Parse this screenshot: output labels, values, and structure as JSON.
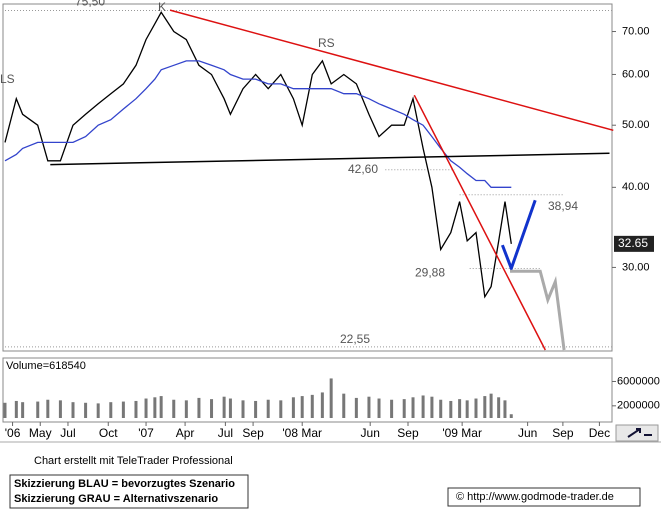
{
  "chart_data": [
    {
      "type": "line",
      "log_y": true,
      "x": [
        -0.4,
        0.5,
        1,
        2.2,
        3,
        4,
        5,
        6,
        7,
        8,
        9,
        10,
        10.8,
        11.5,
        12,
        13,
        14,
        15,
        16,
        17,
        17.5,
        18.5,
        19.5,
        20.5,
        21.5,
        22.5,
        23.2,
        24,
        24.8,
        25.5,
        26.5,
        27.5,
        28.5,
        29.3,
        30.3,
        31.3,
        32,
        32.8,
        33.5,
        34.2,
        35,
        35.7,
        36.3,
        37,
        37.7,
        38.2,
        38.8,
        39.3,
        39.8
      ],
      "series": [
        {
          "color": "#000000",
          "values": [
            47,
            55,
            52,
            50,
            44,
            44,
            50,
            52,
            54,
            56,
            58,
            62,
            68,
            72,
            75,
            70,
            68,
            62,
            60,
            55,
            52,
            57,
            60,
            57,
            60,
            55,
            50,
            60,
            63,
            58,
            60,
            58,
            52,
            48,
            50,
            50,
            55,
            46,
            40,
            32,
            34,
            38,
            33,
            34,
            27,
            28,
            33,
            38,
            32.65
          ]
        },
        {
          "color": "#3344cc",
          "values": [
            44,
            45,
            46,
            47,
            47,
            47,
            47,
            48,
            50,
            51,
            53,
            55,
            57,
            59,
            61,
            62,
            63,
            63,
            62,
            61,
            60,
            59,
            59,
            58,
            58,
            57,
            57,
            57,
            57,
            57,
            56,
            56,
            55,
            54,
            53,
            52,
            51,
            50,
            48,
            46,
            44,
            43,
            42,
            41,
            41,
            40,
            40,
            40,
            40
          ]
        }
      ],
      "ylim": [
        22.3,
        77
      ],
      "yticks": [
        {
          "value": 70,
          "label": "70.00"
        },
        {
          "value": 60,
          "label": "60.00"
        },
        {
          "value": 50,
          "label": "50.00"
        },
        {
          "value": 40,
          "label": "40.00"
        },
        {
          "value": 30,
          "label": "30.00"
        }
      ],
      "xlim": [
        -0.4,
        47.8
      ],
      "xticks": [
        {
          "value": 0.2,
          "label": "'06"
        },
        {
          "value": 2.4,
          "label": "May"
        },
        {
          "value": 4.6,
          "label": "Jul"
        },
        {
          "value": 7.8,
          "label": "Oct"
        },
        {
          "value": 10.8,
          "label": "'07"
        },
        {
          "value": 13.9,
          "label": "Apr"
        },
        {
          "value": 17.1,
          "label": "Jul"
        },
        {
          "value": 19.3,
          "label": "Sep"
        },
        {
          "value": 23.2,
          "label": "'08 Mar"
        },
        {
          "value": 28.6,
          "label": "Jun"
        },
        {
          "value": 31.6,
          "label": "Sep"
        },
        {
          "value": 35.9,
          "label": "'09 Mar"
        },
        {
          "value": 41.1,
          "label": "Jun"
        },
        {
          "value": 43.9,
          "label": "Sep"
        },
        {
          "value": 46.8,
          "label": "Dec"
        }
      ],
      "levels": [
        {
          "value": 75.5,
          "label": "75,50",
          "x": [
            -0.4,
            47.8
          ]
        },
        {
          "value": 42.6,
          "label": "42,60",
          "x": [
            29.8,
            35.3
          ]
        },
        {
          "value": 38.94,
          "label": "38,94",
          "x": [
            35.7,
            44.0
          ]
        },
        {
          "value": 29.88,
          "label": "29,88",
          "x": [
            36.5,
            42.1
          ]
        },
        {
          "value": 22.55,
          "label": "22,55",
          "x": [
            -0.4,
            47.8
          ]
        }
      ],
      "trendlines": [
        {
          "color": "#dd1111",
          "points": [
            [
              12.7,
              75.6
            ],
            [
              47.9,
              49.1
            ]
          ]
        },
        {
          "color": "#dd1111",
          "points": [
            [
              32.1,
              55.7
            ],
            [
              42.5,
              22.3
            ]
          ]
        },
        {
          "color": "#000000",
          "points": [
            [
              3.2,
              43.4
            ],
            [
              47.6,
              45.2
            ]
          ]
        },
        {
          "color": "#1133cc",
          "points": [
            [
              39.1,
              32.5
            ],
            [
              39.8,
              29.9
            ],
            [
              41.7,
              38.2
            ]
          ]
        },
        {
          "color": "#aaaaaa",
          "points": [
            [
              39.7,
              29.6
            ],
            [
              42.1,
              29.6
            ],
            [
              42.7,
              26.7
            ],
            [
              43.3,
              28.5
            ],
            [
              44.0,
              22.3
            ]
          ]
        }
      ],
      "patterns": [
        "LS",
        "K",
        "RS"
      ]
    },
    {
      "type": "bar",
      "title": "Volume=618540",
      "color": "#777777",
      "values": [
        2500000,
        2800000,
        2600000,
        2700000,
        3000000,
        2900000,
        2600000,
        2500000,
        2400000,
        2600000,
        2700000,
        2800000,
        3200000,
        3400000,
        3600000,
        3000000,
        2900000,
        3300000,
        3100000,
        3500000,
        3200000,
        2900000,
        2800000,
        3000000,
        2900000,
        3400000,
        3600000,
        3800000,
        4200000,
        6500000,
        4000000,
        3300000,
        3500000,
        3200000,
        3000000,
        3100000,
        3400000,
        3700000,
        3500000,
        3000000,
        2800000,
        3100000,
        2900000,
        3200000,
        3600000,
        4000000,
        3400000,
        2900000,
        618540
      ],
      "ylim": [
        0,
        9200000
      ],
      "yticks": [
        6000000,
        2000000
      ]
    }
  ],
  "footer": {
    "credit": "Chart erstellt mit TeleTrader Professional",
    "legend": [
      "Skizzierung BLAU = bevorzugtes Szenario",
      "Skizzierung GRAU = Alternativszenario"
    ],
    "url": "© http://www.godmode-trader.de"
  }
}
